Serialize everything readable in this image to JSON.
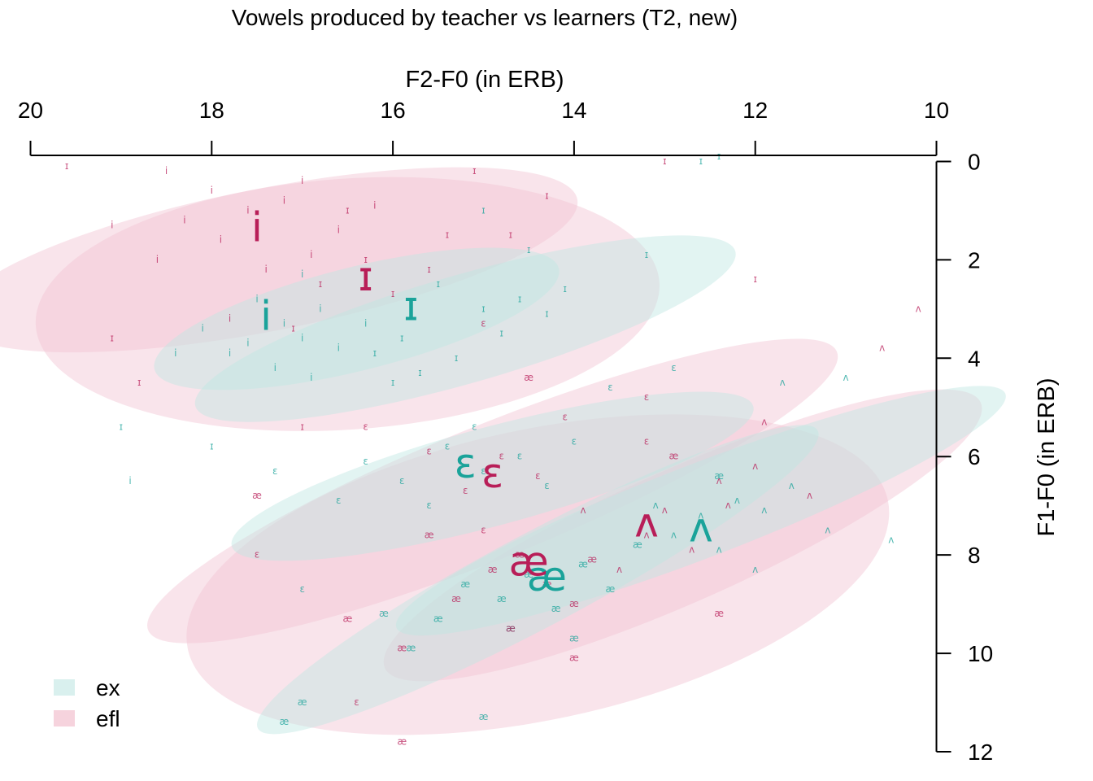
{
  "chart_data": {
    "type": "scatter",
    "title": "Vowels produced by teacher vs learners (T2, new)",
    "xlabel": "F2-F0 (in ERB)",
    "ylabel": "F1-F0 (in ERB)",
    "xlim": [
      20,
      10
    ],
    "ylim": [
      12,
      -1
    ],
    "x_reversed": true,
    "y_reversed": true,
    "x_axis_position": "top",
    "y_axis_position": "right",
    "x_ticks": [
      "20",
      "18",
      "16",
      "14",
      "12",
      "10"
    ],
    "y_ticks": [
      "0",
      "2",
      "4",
      "6",
      "8",
      "10",
      "12"
    ],
    "x_tick_values": [
      20,
      18,
      16,
      14,
      12,
      10
    ],
    "y_tick_values": [
      0,
      2,
      4,
      6,
      8,
      10,
      12
    ],
    "grid": false,
    "legend": {
      "placement": "bottom-left",
      "entries": [
        {
          "name": "ex",
          "color": "#a8dcd8"
        },
        {
          "name": "efl",
          "color": "#f0b8c8"
        }
      ]
    },
    "colors": {
      "ex": "#1aa39a",
      "efl": "#b81e58"
    },
    "series": [
      {
        "name": "ex",
        "centroids": [
          {
            "vowel": "i",
            "x": 17.4,
            "y": 3.2
          },
          {
            "vowel": "ɪ",
            "x": 15.8,
            "y": 3.0
          },
          {
            "vowel": "ɛ",
            "x": 15.2,
            "y": 6.2
          },
          {
            "vowel": "æ",
            "x": 14.3,
            "y": 8.5
          },
          {
            "vowel": "ʌ",
            "x": 12.6,
            "y": 7.5
          }
        ],
        "ellipses": [
          {
            "vowel": "i",
            "cx": 16.4,
            "cy": 3.2,
            "rx": 2.3,
            "ry": 1.05,
            "angle": -14
          },
          {
            "vowel": "ɪ",
            "cx": 15.2,
            "cy": 3.4,
            "rx": 3.1,
            "ry": 1.1,
            "angle": -16
          },
          {
            "vowel": "ɛ",
            "cx": 14.9,
            "cy": 6.4,
            "rx": 2.98,
            "ry": 1.0,
            "angle": -15
          },
          {
            "vowel": "æ",
            "cx": 14.4,
            "cy": 8.5,
            "rx": 3.5,
            "ry": 0.95,
            "angle": -28
          },
          {
            "vowel": "ʌ",
            "cx": 12.6,
            "cy": 7.1,
            "rx": 3.6,
            "ry": 0.95,
            "angle": -21
          }
        ],
        "points": [
          {
            "vowel": "i",
            "x": 17.5,
            "y": 2.8
          },
          {
            "vowel": "i",
            "x": 17.2,
            "y": 3.3
          },
          {
            "vowel": "i",
            "x": 17.0,
            "y": 3.6
          },
          {
            "vowel": "i",
            "x": 16.8,
            "y": 3.0
          },
          {
            "vowel": "i",
            "x": 17.8,
            "y": 3.9
          },
          {
            "vowel": "i",
            "x": 16.6,
            "y": 3.8
          },
          {
            "vowel": "i",
            "x": 17.3,
            "y": 4.2
          },
          {
            "vowel": "i",
            "x": 18.1,
            "y": 3.4
          },
          {
            "vowel": "i",
            "x": 16.3,
            "y": 3.3
          },
          {
            "vowel": "i",
            "x": 17.6,
            "y": 3.7
          },
          {
            "vowel": "i",
            "x": 18.4,
            "y": 3.9
          },
          {
            "vowel": "i",
            "x": 16.9,
            "y": 4.4
          },
          {
            "vowel": "i",
            "x": 18.9,
            "y": 6.5
          },
          {
            "vowel": "i",
            "x": 17.0,
            "y": 2.3
          },
          {
            "vowel": "ɪ",
            "x": 15.5,
            "y": 2.5
          },
          {
            "vowel": "ɪ",
            "x": 15.0,
            "y": 3.0
          },
          {
            "vowel": "ɪ",
            "x": 14.6,
            "y": 2.8
          },
          {
            "vowel": "ɪ",
            "x": 15.9,
            "y": 3.6
          },
          {
            "vowel": "ɪ",
            "x": 16.2,
            "y": 3.9
          },
          {
            "vowel": "ɪ",
            "x": 14.8,
            "y": 3.5
          },
          {
            "vowel": "ɪ",
            "x": 15.3,
            "y": 4.0
          },
          {
            "vowel": "ɪ",
            "x": 14.3,
            "y": 3.1
          },
          {
            "vowel": "ɪ",
            "x": 15.7,
            "y": 4.3
          },
          {
            "vowel": "ɪ",
            "x": 14.1,
            "y": 2.6
          },
          {
            "vowel": "ɪ",
            "x": 16.0,
            "y": 4.5
          },
          {
            "vowel": "ɪ",
            "x": 14.5,
            "y": 1.8
          },
          {
            "vowel": "ɪ",
            "x": 15.0,
            "y": 1.0
          },
          {
            "vowel": "ɪ",
            "x": 13.2,
            "y": 1.9
          },
          {
            "vowel": "ɪ",
            "x": 12.6,
            "y": 0.0
          },
          {
            "vowel": "ɪ",
            "x": 12.4,
            "y": -0.1
          },
          {
            "vowel": "ɪ",
            "x": 19.0,
            "y": 5.4
          },
          {
            "vowel": "ɪ",
            "x": 18.0,
            "y": 5.8
          },
          {
            "vowel": "ɛ",
            "x": 15.4,
            "y": 5.8
          },
          {
            "vowel": "ɛ",
            "x": 15.0,
            "y": 6.3
          },
          {
            "vowel": "ɛ",
            "x": 14.6,
            "y": 6.0
          },
          {
            "vowel": "ɛ",
            "x": 15.9,
            "y": 6.5
          },
          {
            "vowel": "ɛ",
            "x": 15.6,
            "y": 7.0
          },
          {
            "vowel": "ɛ",
            "x": 14.3,
            "y": 6.6
          },
          {
            "vowel": "ɛ",
            "x": 16.3,
            "y": 6.1
          },
          {
            "vowel": "ɛ",
            "x": 15.1,
            "y": 5.4
          },
          {
            "vowel": "ɛ",
            "x": 16.6,
            "y": 6.9
          },
          {
            "vowel": "ɛ",
            "x": 14.0,
            "y": 5.7
          },
          {
            "vowel": "ɛ",
            "x": 13.6,
            "y": 4.6
          },
          {
            "vowel": "ɛ",
            "x": 12.9,
            "y": 4.2
          },
          {
            "vowel": "ɛ",
            "x": 17.3,
            "y": 6.3
          },
          {
            "vowel": "ɛ",
            "x": 17.0,
            "y": 8.7
          },
          {
            "vowel": "æ",
            "x": 14.5,
            "y": 8.4
          },
          {
            "vowel": "æ",
            "x": 14.8,
            "y": 8.9
          },
          {
            "vowel": "æ",
            "x": 14.2,
            "y": 9.1
          },
          {
            "vowel": "æ",
            "x": 15.2,
            "y": 8.6
          },
          {
            "vowel": "æ",
            "x": 13.9,
            "y": 8.2
          },
          {
            "vowel": "æ",
            "x": 14.7,
            "y": 9.5
          },
          {
            "vowel": "æ",
            "x": 15.5,
            "y": 9.3
          },
          {
            "vowel": "æ",
            "x": 13.6,
            "y": 8.7
          },
          {
            "vowel": "æ",
            "x": 14.0,
            "y": 9.7
          },
          {
            "vowel": "æ",
            "x": 15.8,
            "y": 9.9
          },
          {
            "vowel": "æ",
            "x": 13.3,
            "y": 7.8
          },
          {
            "vowel": "æ",
            "x": 16.1,
            "y": 9.2
          },
          {
            "vowel": "æ",
            "x": 17.0,
            "y": 11.0
          },
          {
            "vowel": "æ",
            "x": 17.2,
            "y": 11.4
          },
          {
            "vowel": "æ",
            "x": 15.0,
            "y": 11.3
          },
          {
            "vowel": "æ",
            "x": 12.4,
            "y": 6.4
          },
          {
            "vowel": "ʌ",
            "x": 12.6,
            "y": 7.2
          },
          {
            "vowel": "ʌ",
            "x": 12.2,
            "y": 6.9
          },
          {
            "vowel": "ʌ",
            "x": 12.9,
            "y": 7.6
          },
          {
            "vowel": "ʌ",
            "x": 12.4,
            "y": 7.9
          },
          {
            "vowel": "ʌ",
            "x": 11.9,
            "y": 7.1
          },
          {
            "vowel": "ʌ",
            "x": 13.1,
            "y": 7.0
          },
          {
            "vowel": "ʌ",
            "x": 11.6,
            "y": 6.6
          },
          {
            "vowel": "ʌ",
            "x": 12.0,
            "y": 8.3
          },
          {
            "vowel": "ʌ",
            "x": 11.2,
            "y": 7.5
          },
          {
            "vowel": "ʌ",
            "x": 11.0,
            "y": 4.4
          },
          {
            "vowel": "ʌ",
            "x": 10.5,
            "y": 7.7
          },
          {
            "vowel": "ʌ",
            "x": 11.7,
            "y": 4.5
          }
        ]
      },
      {
        "name": "efl",
        "centroids": [
          {
            "vowel": "i",
            "x": 17.5,
            "y": 1.4
          },
          {
            "vowel": "ɪ",
            "x": 16.3,
            "y": 2.4
          },
          {
            "vowel": "ɛ",
            "x": 14.9,
            "y": 6.4
          },
          {
            "vowel": "æ",
            "x": 14.5,
            "y": 8.2
          },
          {
            "vowel": "ʌ",
            "x": 13.2,
            "y": 7.4
          }
        ],
        "ellipses": [
          {
            "vowel": "i",
            "cx": 17.4,
            "cy": 2.0,
            "rx": 3.5,
            "ry": 1.45,
            "angle": -11
          },
          {
            "vowel": "ɪ",
            "cx": 16.5,
            "cy": 2.9,
            "rx": 3.45,
            "ry": 2.55,
            "angle": -4
          },
          {
            "vowel": "ɛ",
            "cx": 14.9,
            "cy": 6.7,
            "rx": 4.1,
            "ry": 1.35,
            "angle": -22
          },
          {
            "vowel": "æ",
            "cx": 14.4,
            "cy": 8.4,
            "rx": 3.95,
            "ry": 2.95,
            "angle": -12
          },
          {
            "vowel": "ʌ",
            "cx": 12.8,
            "cy": 7.6,
            "rx": 3.6,
            "ry": 1.35,
            "angle": -24
          }
        ],
        "points": [
          {
            "vowel": "i",
            "x": 17.6,
            "y": 1.0
          },
          {
            "vowel": "i",
            "x": 17.9,
            "y": 1.6
          },
          {
            "vowel": "i",
            "x": 17.2,
            "y": 0.8
          },
          {
            "vowel": "i",
            "x": 18.3,
            "y": 1.2
          },
          {
            "vowel": "i",
            "x": 16.9,
            "y": 1.9
          },
          {
            "vowel": "i",
            "x": 17.4,
            "y": 2.2
          },
          {
            "vowel": "i",
            "x": 18.6,
            "y": 2.0
          },
          {
            "vowel": "i",
            "x": 17.0,
            "y": 0.4
          },
          {
            "vowel": "i",
            "x": 16.6,
            "y": 1.4
          },
          {
            "vowel": "i",
            "x": 18.0,
            "y": 0.6
          },
          {
            "vowel": "i",
            "x": 19.1,
            "y": 1.3
          },
          {
            "vowel": "i",
            "x": 17.8,
            "y": 3.2
          },
          {
            "vowel": "i",
            "x": 16.2,
            "y": 0.9
          },
          {
            "vowel": "i",
            "x": 18.5,
            "y": 0.2
          },
          {
            "vowel": "ɪ",
            "x": 16.3,
            "y": 2.0
          },
          {
            "vowel": "ɪ",
            "x": 16.0,
            "y": 2.7
          },
          {
            "vowel": "ɪ",
            "x": 16.8,
            "y": 2.5
          },
          {
            "vowel": "ɪ",
            "x": 15.6,
            "y": 2.2
          },
          {
            "vowel": "ɪ",
            "x": 15.4,
            "y": 1.5
          },
          {
            "vowel": "ɪ",
            "x": 17.1,
            "y": 3.4
          },
          {
            "vowel": "ɪ",
            "x": 16.5,
            "y": 1.0
          },
          {
            "vowel": "ɪ",
            "x": 15.1,
            "y": 0.2
          },
          {
            "vowel": "ɪ",
            "x": 14.7,
            "y": 1.5
          },
          {
            "vowel": "ɪ",
            "x": 14.3,
            "y": 0.7
          },
          {
            "vowel": "ɪ",
            "x": 13.0,
            "y": 0.0
          },
          {
            "vowel": "ɪ",
            "x": 12.0,
            "y": 2.4
          },
          {
            "vowel": "ɪ",
            "x": 18.8,
            "y": 4.5
          },
          {
            "vowel": "ɪ",
            "x": 19.1,
            "y": 3.6
          },
          {
            "vowel": "ɪ",
            "x": 17.0,
            "y": 5.4
          },
          {
            "vowel": "ɪ",
            "x": 19.6,
            "y": 0.1
          },
          {
            "vowel": "ɛ",
            "x": 14.8,
            "y": 6.0
          },
          {
            "vowel": "ɛ",
            "x": 15.2,
            "y": 6.7
          },
          {
            "vowel": "ɛ",
            "x": 14.4,
            "y": 6.4
          },
          {
            "vowel": "ɛ",
            "x": 15.6,
            "y": 5.9
          },
          {
            "vowel": "ɛ",
            "x": 14.1,
            "y": 5.2
          },
          {
            "vowel": "ɛ",
            "x": 15.0,
            "y": 3.3
          },
          {
            "vowel": "ɛ",
            "x": 13.2,
            "y": 4.8
          },
          {
            "vowel": "ɛ",
            "x": 13.2,
            "y": 5.7
          },
          {
            "vowel": "ɛ",
            "x": 16.3,
            "y": 5.4
          },
          {
            "vowel": "ɛ",
            "x": 17.5,
            "y": 8.0
          },
          {
            "vowel": "ɛ",
            "x": 16.4,
            "y": 11.0
          },
          {
            "vowel": "ɛ",
            "x": 15.0,
            "y": 7.5
          },
          {
            "vowel": "æ",
            "x": 14.6,
            "y": 8.0
          },
          {
            "vowel": "æ",
            "x": 14.3,
            "y": 8.6
          },
          {
            "vowel": "æ",
            "x": 14.9,
            "y": 8.3
          },
          {
            "vowel": "æ",
            "x": 14.0,
            "y": 9.0
          },
          {
            "vowel": "æ",
            "x": 14.7,
            "y": 9.5
          },
          {
            "vowel": "æ",
            "x": 15.3,
            "y": 8.9
          },
          {
            "vowel": "æ",
            "x": 13.8,
            "y": 8.1
          },
          {
            "vowel": "æ",
            "x": 15.9,
            "y": 9.9
          },
          {
            "vowel": "æ",
            "x": 16.5,
            "y": 9.3
          },
          {
            "vowel": "æ",
            "x": 14.5,
            "y": 4.4
          },
          {
            "vowel": "æ",
            "x": 15.6,
            "y": 7.6
          },
          {
            "vowel": "æ",
            "x": 12.9,
            "y": 6.0
          },
          {
            "vowel": "æ",
            "x": 12.4,
            "y": 9.2
          },
          {
            "vowel": "æ",
            "x": 17.5,
            "y": 6.8
          },
          {
            "vowel": "æ",
            "x": 15.9,
            "y": 11.8
          },
          {
            "vowel": "æ",
            "x": 14.0,
            "y": 10.1
          },
          {
            "vowel": "ʌ",
            "x": 13.2,
            "y": 7.6
          },
          {
            "vowel": "ʌ",
            "x": 13.0,
            "y": 7.1
          },
          {
            "vowel": "ʌ",
            "x": 12.7,
            "y": 7.9
          },
          {
            "vowel": "ʌ",
            "x": 13.5,
            "y": 8.3
          },
          {
            "vowel": "ʌ",
            "x": 12.4,
            "y": 6.5
          },
          {
            "vowel": "ʌ",
            "x": 11.9,
            "y": 5.3
          },
          {
            "vowel": "ʌ",
            "x": 12.3,
            "y": 7.0
          },
          {
            "vowel": "ʌ",
            "x": 11.4,
            "y": 6.8
          },
          {
            "vowel": "ʌ",
            "x": 10.6,
            "y": 3.8
          },
          {
            "vowel": "ʌ",
            "x": 10.2,
            "y": 3.0
          },
          {
            "vowel": "ʌ",
            "x": 13.9,
            "y": 7.1
          },
          {
            "vowel": "ʌ",
            "x": 12.0,
            "y": 6.2
          }
        ]
      }
    ]
  }
}
